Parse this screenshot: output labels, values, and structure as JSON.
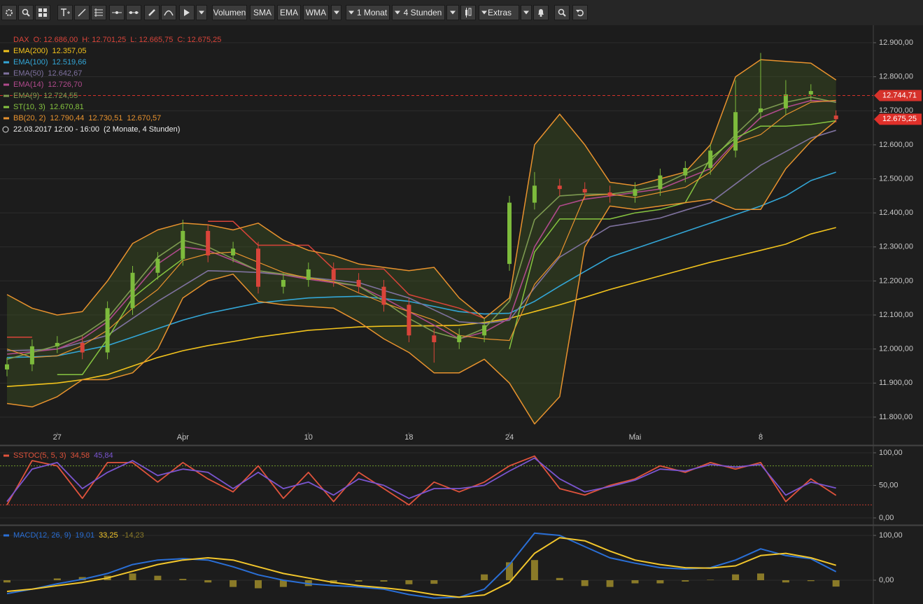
{
  "toolbar": {
    "buttons": [
      "Volumen",
      "SMA",
      "EMA",
      "WMA",
      "1 Monat",
      "4 Stunden",
      "Extras"
    ]
  },
  "chart_data": [
    {
      "type": "candlestick",
      "title": "DAX",
      "ohlc_labels": [
        "O: 12.686,00",
        "H: 12.701,25",
        "L: 12.665,75",
        "C: 12.675,25"
      ],
      "period_label": "22.03.2017 12:00 - 16:00",
      "period_note": "(2 Monate, 4 Stunden)",
      "categories": [
        null,
        null,
        "27",
        null,
        null,
        null,
        null,
        "Apr",
        null,
        null,
        null,
        null,
        "10",
        null,
        null,
        null,
        "18",
        null,
        null,
        null,
        "24",
        null,
        null,
        null,
        null,
        "Mai",
        null,
        null,
        null,
        null,
        "8",
        null,
        null,
        null
      ],
      "open": [
        11940,
        11955,
        12008,
        12018,
        11990,
        12120,
        12224,
        12265,
        12347,
        12275,
        12295,
        12183,
        12203,
        12234,
        12203,
        12183,
        12130,
        12040,
        12020,
        12040,
        12250,
        12430,
        12480,
        12470,
        12460,
        12450,
        12470,
        12510,
        12532,
        12583,
        12696,
        12707,
        12748,
        12686
      ],
      "high": [
        11975,
        12028,
        12038,
        12038,
        12140,
        12244,
        12285,
        12380,
        12367,
        12315,
        12315,
        12223,
        12254,
        12254,
        12223,
        12203,
        12150,
        12060,
        12060,
        12090,
        12450,
        12520,
        12500,
        12490,
        12480,
        12490,
        12530,
        12552,
        12603,
        12790,
        12870,
        12790,
        12778,
        12701.25
      ],
      "low": [
        11920,
        11935,
        11988,
        11970,
        11970,
        12100,
        12204,
        12245,
        12255,
        12255,
        12163,
        12163,
        12183,
        12183,
        12163,
        12110,
        12020,
        11960,
        12000,
        12020,
        12230,
        12410,
        12450,
        12440,
        12430,
        12430,
        12450,
        12490,
        12512,
        12563,
        12676,
        12687,
        12728,
        12665.75
      ],
      "close": [
        11955,
        12008,
        12018,
        11990,
        12120,
        12224,
        12265,
        12347,
        12275,
        12295,
        12183,
        12203,
        12234,
        12203,
        12183,
        12130,
        12040,
        12020,
        12040,
        12070,
        12430,
        12480,
        12470,
        12460,
        12450,
        12470,
        12510,
        12532,
        12583,
        12696,
        12707,
        12748,
        12758,
        12675.25
      ],
      "up_color": "#7dbb3c",
      "down_color": "#d9443a",
      "series": [
        {
          "name": "EMA(200)",
          "color": "#f2c31c",
          "legend_values": [
            "12.357,05"
          ],
          "values": [
            11890,
            11895,
            11900,
            11910,
            11925,
            11950,
            11975,
            11995,
            12010,
            12022,
            12035,
            12045,
            12055,
            12060,
            12065,
            12067,
            12068,
            12068,
            12070,
            12078,
            12090,
            12110,
            12130,
            12152,
            12175,
            12195,
            12215,
            12235,
            12255,
            12272,
            12290,
            12308,
            12338,
            12357.05
          ]
        },
        {
          "name": "EMA(100)",
          "color": "#33a6d6",
          "legend_values": [
            "12.519,66"
          ],
          "values": [
            11975,
            11977,
            11980,
            11995,
            12010,
            12035,
            12060,
            12085,
            12105,
            12120,
            12135,
            12143,
            12150,
            12153,
            12155,
            12148,
            12140,
            12125,
            12110,
            12103,
            12105,
            12140,
            12185,
            12228,
            12270,
            12295,
            12320,
            12345,
            12370,
            12395,
            12420,
            12450,
            12495,
            12519.66
          ]
        },
        {
          "name": "EMA(50)",
          "color": "#7f729f",
          "legend_values": [
            "12.642,67"
          ],
          "values": [
            11995,
            11997,
            12000,
            12020,
            12040,
            12090,
            12140,
            12185,
            12230,
            12228,
            12225,
            12218,
            12210,
            12203,
            12195,
            12172,
            12150,
            12115,
            12080,
            12075,
            12085,
            12180,
            12270,
            12315,
            12360,
            12372,
            12385,
            12408,
            12430,
            12485,
            12540,
            12580,
            12620,
            12642.67
          ]
        },
        {
          "name": "EMA(14)",
          "color": "#b04a8c",
          "legend_values": [
            "12.726,70"
          ],
          "values": [
            11985,
            11992,
            12000,
            12030,
            12080,
            12165,
            12250,
            12300,
            12290,
            12260,
            12230,
            12218,
            12205,
            12195,
            12185,
            12150,
            12110,
            12070,
            12030,
            12050,
            12090,
            12300,
            12420,
            12440,
            12450,
            12460,
            12470,
            12500,
            12530,
            12610,
            12680,
            12710,
            12730,
            12726.7
          ]
        },
        {
          "name": "EMA(9)",
          "color": "#7d9a50",
          "legend_values": [
            "12.724,55"
          ],
          "values": [
            11970,
            11990,
            12010,
            12040,
            12090,
            12180,
            12270,
            12320,
            12300,
            12265,
            12230,
            12220,
            12210,
            12198,
            12185,
            12140,
            12090,
            12050,
            12030,
            12060,
            12140,
            12380,
            12450,
            12455,
            12455,
            12465,
            12480,
            12515,
            12550,
            12630,
            12700,
            12725,
            12740,
            12724.55
          ]
        },
        {
          "name": "ST(10, 3)",
          "color": "#86c440",
          "color_down": "#d9443a",
          "legend_values": [
            "12.670,81"
          ],
          "values": [
            12035,
            12035,
            11925,
            11925,
            12030,
            12150,
            12210,
            12265,
            12375,
            12375,
            12305,
            12305,
            12305,
            12235,
            12235,
            12235,
            12160,
            12140,
            12120,
            12090,
            12000,
            12285,
            12382,
            12382,
            12382,
            12400,
            12410,
            12430,
            12560,
            12620,
            12655,
            12655,
            12660,
            12670.81
          ]
        },
        {
          "name": "BB(20, 2)",
          "color": "#e8922e",
          "fill": "rgba(70,95,35,0.35)",
          "legend_values": [
            "12.790,44",
            "12.730,51",
            "12.670,57"
          ],
          "upper": [
            12160,
            12120,
            12100,
            12110,
            12200,
            12310,
            12350,
            12370,
            12365,
            12350,
            12370,
            12320,
            12290,
            12275,
            12250,
            12240,
            12230,
            12240,
            12150,
            12090,
            12150,
            12600,
            12690,
            12600,
            12490,
            12480,
            12500,
            12520,
            12600,
            12800,
            12850,
            12845,
            12840,
            12790.44
          ],
          "middle": [
            12000,
            11975,
            11980,
            12010,
            12055,
            12120,
            12175,
            12260,
            12280,
            12285,
            12255,
            12225,
            12208,
            12198,
            12165,
            12135,
            12110,
            12085,
            12040,
            12030,
            12025,
            12190,
            12275,
            12450,
            12455,
            12445,
            12460,
            12475,
            12520,
            12605,
            12630,
            12688,
            12725,
            12730.51
          ],
          "lower": [
            11840,
            11830,
            11860,
            11910,
            11910,
            11930,
            12000,
            12150,
            12200,
            12220,
            12140,
            12130,
            12125,
            12120,
            12080,
            12030,
            11990,
            11930,
            11930,
            11970,
            11900,
            11780,
            11860,
            12300,
            12420,
            12410,
            12420,
            12430,
            12440,
            12410,
            12410,
            12530,
            12610,
            12670.57
          ]
        }
      ],
      "current_price": {
        "value": 12744.71,
        "label": "12.744,71"
      },
      "last_price": {
        "value": 12675.25,
        "label": "12.675,25"
      },
      "ylim": [
        11767,
        12935
      ],
      "yticks": [
        {
          "value": 12900,
          "label": "12.900,00"
        },
        {
          "value": 12800,
          "label": "12.800,00"
        },
        {
          "value": 12700,
          "label": "12.700,00"
        },
        {
          "value": 12600,
          "label": "12.600,00"
        },
        {
          "value": 12500,
          "label": "12.500,00"
        },
        {
          "value": 12400,
          "label": "12.400,00"
        },
        {
          "value": 12300,
          "label": "12.300,00"
        },
        {
          "value": 12200,
          "label": "12.200,00"
        },
        {
          "value": 12100,
          "label": "12.100,00"
        },
        {
          "value": 12000,
          "label": "12.000,00"
        },
        {
          "value": 11900,
          "label": "11.900,00"
        },
        {
          "value": 11800,
          "label": "11.800,00"
        }
      ],
      "grid": true
    },
    {
      "type": "line",
      "title": "SSTOC(5, 5, 3)",
      "series": [
        {
          "color": "#e0533c",
          "value_label": "34,58",
          "values": [
            20,
            88,
            80,
            30,
            85,
            85,
            55,
            85,
            60,
            40,
            80,
            30,
            70,
            25,
            70,
            45,
            20,
            55,
            40,
            55,
            80,
            95,
            45,
            35,
            50,
            60,
            80,
            70,
            85,
            75,
            85,
            25,
            60,
            34.58
          ]
        },
        {
          "color": "#7a55d0",
          "value_label": "45,84",
          "values": [
            25,
            75,
            85,
            45,
            70,
            88,
            65,
            75,
            70,
            45,
            70,
            45,
            55,
            35,
            60,
            50,
            30,
            45,
            45,
            50,
            72,
            92,
            60,
            40,
            48,
            58,
            75,
            72,
            82,
            78,
            82,
            35,
            55,
            45.84
          ]
        }
      ],
      "levels": [
        80,
        20
      ],
      "level_colors": [
        "#6f9a2a",
        "#c0392b"
      ],
      "ylim": [
        -8.6,
        107.5
      ],
      "yticks": [
        {
          "value": 100,
          "label": "100,00"
        },
        {
          "value": 50,
          "label": "50,00"
        },
        {
          "value": 0,
          "label": "0,00"
        }
      ],
      "grid": true
    },
    {
      "type": "macd",
      "title": "MACD(12, 26, 9)",
      "series": [
        {
          "color": "#2a6fd6",
          "value_label": "19,01",
          "values": [
            -30,
            -20,
            -8,
            2,
            15,
            35,
            45,
            48,
            45,
            30,
            12,
            0,
            -8,
            -12,
            -15,
            -20,
            -32,
            -40,
            -38,
            -20,
            35,
            105,
            100,
            75,
            50,
            38,
            28,
            25,
            28,
            45,
            70,
            55,
            48,
            19.01
          ]
        },
        {
          "color": "#f2c62c",
          "value_label": "33,25",
          "values": [
            -25,
            -20,
            -12,
            -5,
            5,
            20,
            35,
            45,
            50,
            45,
            30,
            15,
            5,
            -5,
            -12,
            -17,
            -23,
            -32,
            -38,
            -33,
            -5,
            60,
            95,
            88,
            65,
            45,
            35,
            28,
            27,
            32,
            55,
            60,
            50,
            33.25
          ]
        }
      ],
      "histogram": {
        "color": "#8a7a28",
        "value_label": "-14,23",
        "values": [
          -5,
          0,
          4,
          7,
          10,
          15,
          10,
          3,
          -5,
          -15,
          -18,
          -15,
          -13,
          -7,
          -3,
          -3,
          -9,
          -8,
          0,
          13,
          40,
          45,
          5,
          -13,
          -15,
          -7,
          -7,
          -3,
          1,
          13,
          15,
          -5,
          -2,
          -14.23
        ]
      },
      "ylim": [
        -53.1,
        117.2
      ],
      "yticks": [
        {
          "value": 100,
          "label": "100,00"
        },
        {
          "value": 0,
          "label": "0,00"
        }
      ],
      "grid": true
    }
  ]
}
